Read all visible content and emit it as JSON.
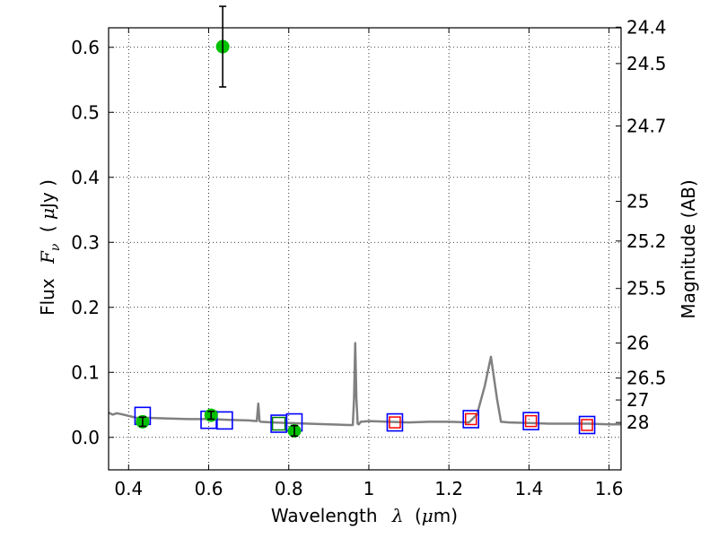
{
  "chart_data": {
    "type": "scatter",
    "xlabel": {
      "text": "Wavelength",
      "symbol": "λ",
      "unit_open": "(",
      "unit_mu": "μ",
      "unit_rest": "m)"
    },
    "ylabel": {
      "text": "Flux",
      "symbol": "F",
      "subscript": "ν",
      "unit_open": "( ",
      "unit_mu": "μ",
      "unit_rest": "Jy )"
    },
    "y2label": "Magnitude (AB)",
    "xlim": [
      0.35,
      1.63
    ],
    "ylim": [
      -0.05,
      0.63
    ],
    "grid": true,
    "x_ticks": [
      0.4,
      0.6,
      0.8,
      1.0,
      1.2,
      1.4,
      1.6
    ],
    "x_tick_labels": [
      "0.4",
      "0.6",
      "0.8",
      "1",
      "1.2",
      "1.4",
      "1.6"
    ],
    "y_ticks": [
      0.0,
      0.1,
      0.2,
      0.3,
      0.4,
      0.5,
      0.6
    ],
    "y_tick_labels": [
      "0.0",
      "0.1",
      "0.2",
      "0.3",
      "0.4",
      "0.5",
      "0.6"
    ],
    "mag_ticks": [
      {
        "flux": 0.631,
        "label": "24.4"
      },
      {
        "flux": 0.575,
        "label": "24.5"
      },
      {
        "flux": 0.479,
        "label": "24.7"
      },
      {
        "flux": 0.363,
        "label": "25"
      },
      {
        "flux": 0.302,
        "label": "25.2"
      },
      {
        "flux": 0.229,
        "label": "25.5"
      },
      {
        "flux": 0.145,
        "label": "26"
      },
      {
        "flux": 0.0912,
        "label": "26.5"
      },
      {
        "flux": 0.0575,
        "label": "27"
      },
      {
        "flux": 0.0229,
        "label": "28"
      }
    ],
    "colors": {
      "model": "#808080",
      "observed": "#00c000",
      "model_box": "#0000ff",
      "model_box_inner": "#008000",
      "model_box_red": "#ff0000",
      "error_bar": "#000000"
    },
    "series": [
      {
        "role": "model-spectrum",
        "x": [
          0.35,
          0.36,
          0.37,
          0.38,
          0.4,
          0.42,
          0.45,
          0.5,
          0.55,
          0.6,
          0.65,
          0.7,
          0.72,
          0.724,
          0.727,
          0.73,
          0.76,
          0.8,
          0.85,
          0.9,
          0.95,
          0.96,
          0.963,
          0.966,
          0.969,
          0.972,
          0.975,
          0.98,
          1.0,
          1.05,
          1.1,
          1.15,
          1.2,
          1.25,
          1.27,
          1.29,
          1.305,
          1.32,
          1.33,
          1.35,
          1.4,
          1.45,
          1.5,
          1.55,
          1.6,
          1.63
        ],
        "y": [
          0.038,
          0.035,
          0.037,
          0.036,
          0.033,
          0.03,
          0.03,
          0.029,
          0.028,
          0.028,
          0.027,
          0.026,
          0.025,
          0.052,
          0.025,
          0.024,
          0.023,
          0.022,
          0.021,
          0.02,
          0.019,
          0.019,
          0.06,
          0.145,
          0.06,
          0.021,
          0.02,
          0.024,
          0.025,
          0.024,
          0.023,
          0.024,
          0.024,
          0.023,
          0.035,
          0.08,
          0.124,
          0.06,
          0.024,
          0.023,
          0.022,
          0.021,
          0.021,
          0.021,
          0.02,
          0.02
        ]
      },
      {
        "role": "observed-photometry",
        "points": [
          {
            "x": 0.435,
            "y": 0.024,
            "err": 0.007
          },
          {
            "x": 0.606,
            "y": 0.034,
            "err": 0.006
          },
          {
            "x": 0.635,
            "y": 0.601,
            "err": 0.062
          },
          {
            "x": 0.814,
            "y": 0.01,
            "err": 0.008
          }
        ]
      },
      {
        "role": "model-photometry",
        "points": [
          {
            "x": 0.435,
            "y": 0.033,
            "inner": "none"
          },
          {
            "x": 0.6,
            "y": 0.027,
            "inner": "none"
          },
          {
            "x": 0.64,
            "y": 0.026,
            "inner": "none"
          },
          {
            "x": 0.775,
            "y": 0.021,
            "inner": "green"
          },
          {
            "x": 0.814,
            "y": 0.023,
            "inner": "none"
          },
          {
            "x": 1.065,
            "y": 0.023,
            "inner": "red"
          },
          {
            "x": 1.255,
            "y": 0.028,
            "inner": "red"
          },
          {
            "x": 1.405,
            "y": 0.025,
            "inner": "red"
          },
          {
            "x": 1.545,
            "y": 0.019,
            "inner": "red"
          }
        ]
      }
    ]
  }
}
